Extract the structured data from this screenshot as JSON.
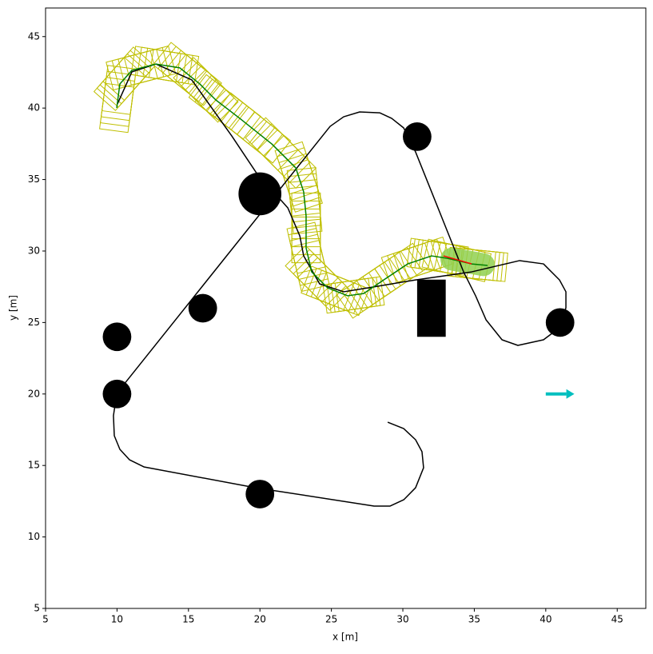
{
  "chart_data": {
    "type": "line",
    "xlabel": "x [m]",
    "ylabel": "y [m]",
    "xlim": [
      5,
      47
    ],
    "ylim": [
      5,
      47
    ],
    "xticks": [
      5,
      10,
      15,
      20,
      25,
      30,
      35,
      40,
      45
    ],
    "yticks": [
      5,
      10,
      15,
      20,
      25,
      30,
      35,
      40,
      45
    ],
    "series": [
      {
        "color": "#000000",
        "x": [
          10.03,
          11.04,
          12.72,
          15.23,
          18.03,
          19.71,
          21.95,
          22.79,
          23.06,
          24.18,
          25.86,
          27.54,
          30.89,
          34.81,
          38.17,
          39.84,
          40.96,
          41.41,
          41.41,
          40.96,
          39.84,
          38.05,
          36.94,
          35.82,
          35.09,
          34.25,
          33.13,
          32.01,
          30.89,
          30.06,
          29.22,
          28.38,
          26.98,
          25.86,
          24.91,
          9.98,
          9.75,
          9.81,
          10.2,
          10.87,
          11.88,
          19.71,
          27.99,
          29.11,
          30.06,
          30.89,
          31.45,
          31.34,
          30.89,
          30.06,
          28.94
        ],
        "values": [
          40.29,
          42.53,
          43.08,
          41.97,
          38.05,
          35.53,
          33.02,
          31.06,
          29.66,
          27.7,
          27.15,
          27.42,
          27.98,
          28.54,
          29.33,
          29.1,
          27.98,
          27.15,
          26.03,
          24.63,
          23.79,
          23.4,
          23.79,
          25.19,
          26.87,
          28.54,
          31.34,
          34.14,
          36.93,
          38.61,
          39.28,
          39.67,
          39.73,
          39.39,
          38.72,
          20.04,
          18.48,
          17.08,
          16.13,
          15.4,
          14.9,
          13.44,
          12.16,
          12.16,
          12.6,
          13.44,
          14.84,
          15.96,
          16.8,
          17.58,
          18.03
        ]
      },
      {
        "color": "#008000",
        "x": [
          9.98,
          10.2,
          11.04,
          12.72,
          14.4,
          15.79,
          16.91,
          18.59,
          20.83,
          22.51,
          23.06,
          23.23,
          23.23,
          23.62,
          24.74,
          26.14,
          27.26,
          28.66,
          30.34,
          32.01,
          33.13,
          34.81,
          35.93
        ],
        "values": [
          40.01,
          41.69,
          42.64,
          43.08,
          42.81,
          41.69,
          40.57,
          39.28,
          37.49,
          35.81,
          34.14,
          32.46,
          30.22,
          28.54,
          27.42,
          26.87,
          27.03,
          27.98,
          29.1,
          29.66,
          29.49,
          29.1,
          28.99
        ]
      },
      {
        "color": "#ff0000",
        "x": [
          32.85,
          34.81
        ],
        "values": [
          29.66,
          29.1
        ]
      }
    ],
    "footprint": {
      "color": "#bfbf00",
      "length": 3.2,
      "width": 2.0
    },
    "circles": {
      "color": "#000000",
      "x": [
        10,
        10,
        16,
        20,
        31,
        41,
        20
      ],
      "values": [
        20,
        24,
        26,
        34,
        38,
        25,
        13
      ],
      "r": [
        1,
        1,
        1,
        1.5,
        1,
        1,
        1
      ]
    },
    "rect": {
      "color": "#000000",
      "x": [
        31,
        33
      ],
      "values": [
        24,
        28
      ]
    },
    "arrow": {
      "color": "#00bfbf",
      "x": [
        40,
        42
      ],
      "values": [
        20,
        20
      ]
    }
  }
}
